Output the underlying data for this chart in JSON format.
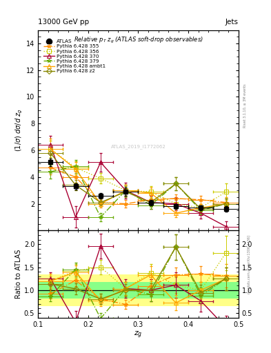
{
  "title_top": "13000 GeV pp",
  "title_top_right": "Jets",
  "plot_title": "Relative $p_T$ $z_g$ (ATLAS soft-drop observables)",
  "ylabel_main": "(1/σ) dσ/d z_{g}",
  "ylabel_ratio": "Ratio to ATLAS",
  "xlabel": "z_{g}",
  "rivet_label": "Rivet 3.1.10, ≥ 3M events",
  "watermark": "ATLAS_2019_I1772062",
  "xpoints": [
    0.125,
    0.175,
    0.225,
    0.275,
    0.325,
    0.375,
    0.425,
    0.475
  ],
  "xerr": 0.025,
  "atlas_y": [
    5.1,
    3.3,
    2.6,
    2.9,
    2.1,
    1.8,
    1.7,
    1.6
  ],
  "atlas_yerr": [
    0.3,
    0.25,
    0.2,
    0.3,
    0.2,
    0.2,
    0.2,
    0.2
  ],
  "py355_y": [
    4.7,
    4.0,
    2.1,
    2.0,
    2.3,
    2.4,
    2.3,
    2.1
  ],
  "py355_yerr": [
    0.5,
    0.4,
    0.3,
    0.3,
    0.3,
    0.3,
    0.3,
    0.4
  ],
  "py355_color": "#FF8C00",
  "py355_style": "-.",
  "py355_marker": "*",
  "py356_y": [
    6.1,
    4.7,
    3.9,
    3.0,
    2.9,
    2.0,
    1.7,
    2.9
  ],
  "py356_yerr": [
    0.6,
    0.5,
    0.4,
    0.4,
    0.4,
    0.3,
    0.3,
    0.6
  ],
  "py356_color": "#CCCC00",
  "py356_style": ":",
  "py356_marker": "s",
  "py370_y": [
    6.4,
    1.0,
    5.1,
    3.0,
    2.1,
    2.0,
    1.3,
    0.3
  ],
  "py370_yerr": [
    0.7,
    0.8,
    0.7,
    0.6,
    0.5,
    0.5,
    0.4,
    0.4
  ],
  "py370_color": "#AA0033",
  "py370_style": "-",
  "py370_marker": "^",
  "py379_y": [
    4.4,
    4.8,
    1.0,
    3.0,
    1.9,
    3.5,
    1.5,
    2.0
  ],
  "py379_yerr": [
    0.5,
    0.5,
    0.3,
    0.4,
    0.3,
    0.5,
    0.3,
    0.4
  ],
  "py379_color": "#66AA00",
  "py379_style": "-.",
  "py379_marker": "*",
  "pyambt1_y": [
    6.1,
    4.6,
    2.0,
    3.0,
    2.8,
    1.3,
    1.7,
    2.0
  ],
  "pyambt1_yerr": [
    0.8,
    0.5,
    0.3,
    0.4,
    0.4,
    0.3,
    0.3,
    0.4
  ],
  "pyambt1_color": "#FFA500",
  "pyambt1_style": "-",
  "pyambt1_marker": "^",
  "pyz2_y": [
    5.8,
    3.4,
    2.1,
    2.9,
    2.1,
    3.5,
    1.6,
    2.0
  ],
  "pyz2_yerr": [
    0.6,
    0.4,
    0.3,
    0.4,
    0.3,
    0.5,
    0.3,
    0.4
  ],
  "pyz2_color": "#888800",
  "pyz2_style": "-",
  "pyz2_marker": "D",
  "ylim_main": [
    0,
    15
  ],
  "ylim_ratio": [
    0.4,
    2.3
  ],
  "xlim": [
    0.1,
    0.5
  ],
  "yticks_main": [
    2,
    4,
    6,
    8,
    10,
    12,
    14
  ],
  "yticks_ratio": [
    0.5,
    1.0,
    1.5,
    2.0
  ],
  "band_yellow_lo": 0.65,
  "band_yellow_hi": 1.35,
  "band_green_lo": 0.82,
  "band_green_hi": 1.18
}
